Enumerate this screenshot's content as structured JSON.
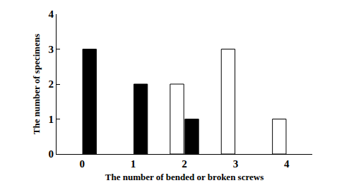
{
  "chart_data": {
    "type": "bar",
    "categories": [
      "0",
      "1",
      "2",
      "3",
      "4"
    ],
    "series": [
      {
        "color": "#ffffff",
        "values": [
          null,
          null,
          2,
          3,
          1
        ]
      },
      {
        "color": "#000000",
        "values": [
          3,
          2,
          1,
          null,
          null
        ]
      }
    ],
    "xlabel": "The number of bended or broken screws",
    "ylabel": "The number of specimens",
    "ylim": [
      0,
      4
    ],
    "yticks": [
      0,
      1,
      2,
      3,
      4
    ],
    "grid": false
  }
}
